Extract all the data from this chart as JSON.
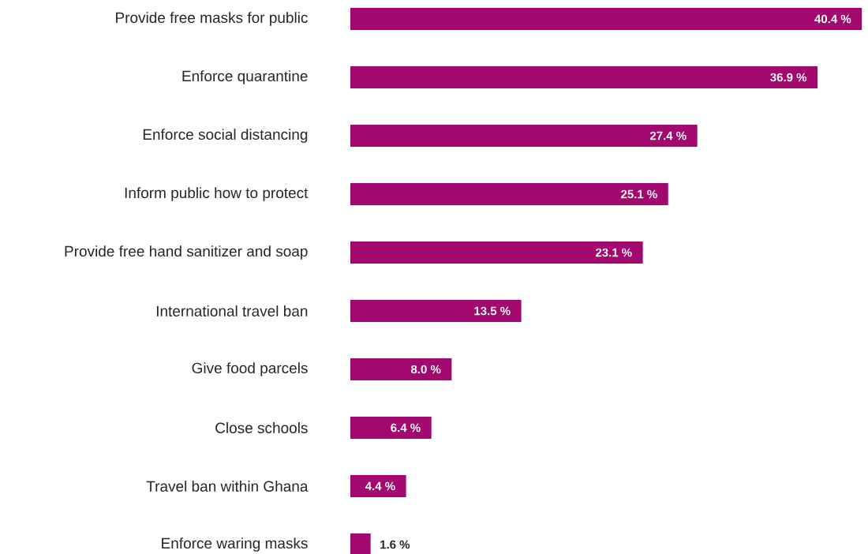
{
  "chart_data": {
    "type": "bar",
    "orientation": "horizontal",
    "color": "#a3086f",
    "categories": [
      "Provide free masks for public",
      "Enforce quarantine",
      "Enforce social distancing",
      "Inform public how to protect",
      "Provide free hand sanitizer and soap",
      "International travel ban",
      "Give food parcels",
      "Close schools",
      "Travel ban within Ghana",
      "Enforce waring masks"
    ],
    "values": [
      40.4,
      36.9,
      27.4,
      25.1,
      23.1,
      13.5,
      8.0,
      6.4,
      4.4,
      1.6
    ],
    "value_labels": [
      "40.4 %",
      "36.9 %",
      "27.4 %",
      "25.1 %",
      "23.1 %",
      "13.5 %",
      "8.0 %",
      "6.4 %",
      "4.4 %",
      "1.6 %"
    ]
  }
}
